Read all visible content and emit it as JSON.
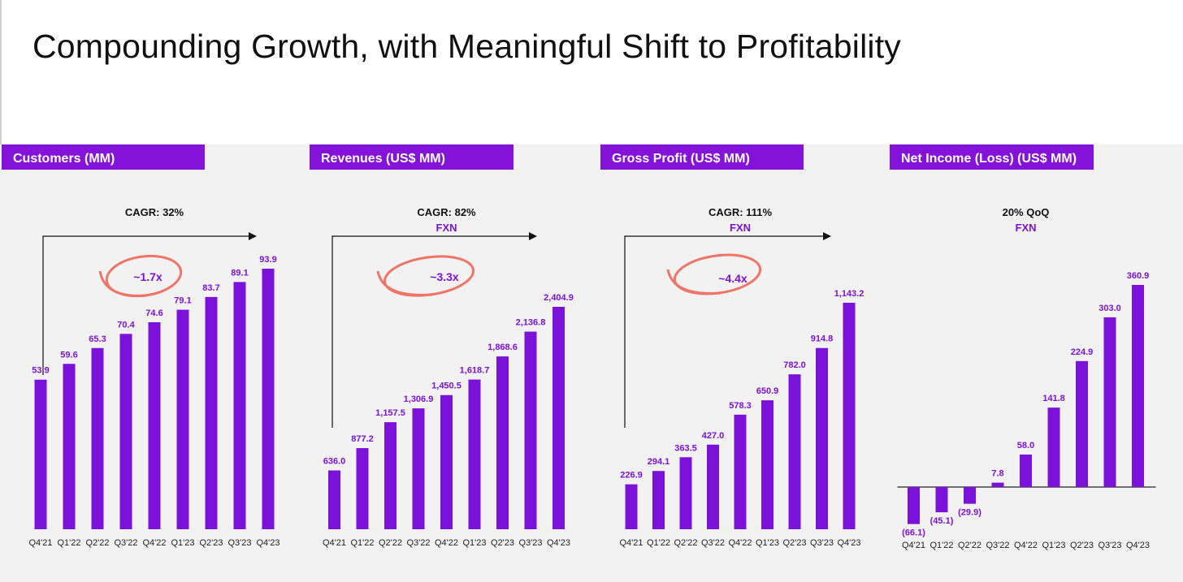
{
  "title": "Compounding Growth, with Meaningful Shift to Profitability",
  "colors": {
    "bar": "#7b12d9",
    "header_bg": "#8412d8",
    "highlight": "#f07468",
    "label": "#7b12d9",
    "text": "#111111"
  },
  "chart_data": [
    {
      "type": "bar",
      "title": "Customers (MM)",
      "annotation": "CAGR: 32%",
      "sub_annotation": "",
      "callout": "~1.7x",
      "categories": [
        "Q4'21",
        "Q1'22",
        "Q2'22",
        "Q3'22",
        "Q4'22",
        "Q1'23",
        "Q2'23",
        "Q3'23",
        "Q4'23"
      ],
      "values": [
        53.9,
        59.6,
        65.3,
        70.4,
        74.6,
        79.1,
        83.7,
        89.1,
        93.9
      ],
      "labels": [
        "53.9",
        "59.6",
        "65.3",
        "70.4",
        "74.6",
        "79.1",
        "83.7",
        "89.1",
        "93.9"
      ],
      "ylim": [
        0,
        100
      ]
    },
    {
      "type": "bar",
      "title": "Revenues (US$ MM)",
      "annotation": "CAGR: 82%",
      "sub_annotation": "FXN",
      "callout": "~3.3x",
      "categories": [
        "Q4'21",
        "Q1'22",
        "Q2'22",
        "Q3'22",
        "Q4'22",
        "Q1'23",
        "Q2'23",
        "Q3'23",
        "Q4'23"
      ],
      "values": [
        636.0,
        877.2,
        1157.5,
        1306.9,
        1450.5,
        1618.7,
        1868.6,
        2136.8,
        2404.9
      ],
      "labels": [
        "636.0",
        "877.2",
        "1,157.5",
        "1,306.9",
        "1,450.5",
        "1,618.7",
        "1,868.6",
        "2,136.8",
        "2,404.9"
      ],
      "ylim": [
        0,
        2404.9
      ]
    },
    {
      "type": "bar",
      "title": "Gross Profit (US$ MM)",
      "annotation": "CAGR: 111%",
      "sub_annotation": "FXN",
      "callout": "~4.4x",
      "categories": [
        "Q4'21",
        "Q1'22",
        "Q2'22",
        "Q3'22",
        "Q4'22",
        "Q1'23",
        "Q2'23",
        "Q3'23",
        "Q4'23"
      ],
      "values": [
        226.9,
        294.1,
        363.5,
        427.0,
        578.3,
        650.9,
        782.0,
        914.8,
        1143.2
      ],
      "labels": [
        "226.9",
        "294.1",
        "363.5",
        "427.0",
        "578.3",
        "650.9",
        "782.0",
        "914.8",
        "1,143.2"
      ],
      "ylim": [
        0,
        1143.2
      ]
    },
    {
      "type": "bar",
      "title": "Net Income (Loss) (US$ MM)",
      "annotation": "20% QoQ",
      "sub_annotation": "FXN",
      "callout": "",
      "categories": [
        "Q4'21",
        "Q1'22",
        "Q2'22",
        "Q3'22",
        "Q4'22",
        "Q1'23",
        "Q2'23",
        "Q3'23",
        "Q4'23"
      ],
      "values": [
        -66.1,
        -45.1,
        -29.9,
        7.8,
        58.0,
        141.8,
        224.9,
        303.0,
        360.9
      ],
      "labels": [
        "(66.1)",
        "(45.1)",
        "(29.9)",
        "7.8",
        "58.0",
        "141.8",
        "224.9",
        "303.0",
        "360.9"
      ],
      "ylim": [
        -66.1,
        360.9
      ]
    }
  ]
}
